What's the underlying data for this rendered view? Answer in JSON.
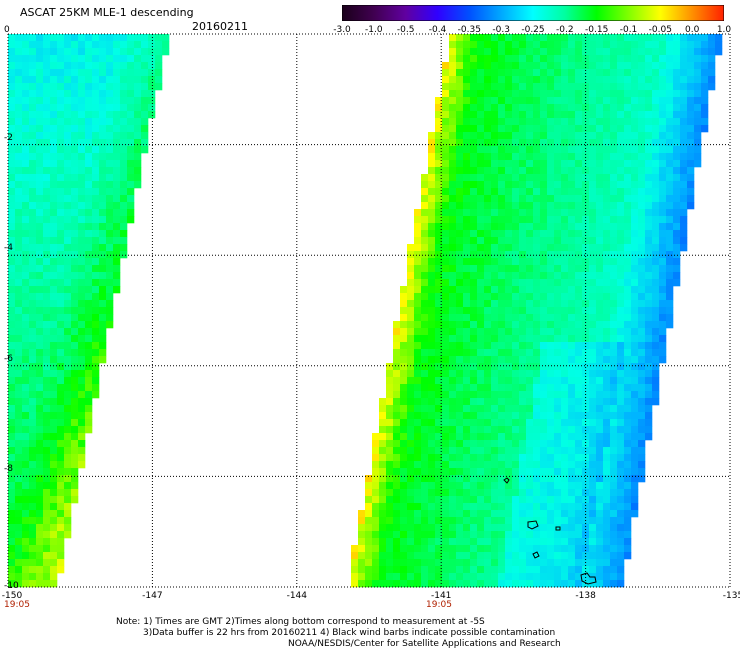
{
  "header": {
    "title": "ASCAT 25KM MLE-1 descending",
    "date": "20160211"
  },
  "colorbar": {
    "labels": [
      "-3.0",
      "-1.0",
      "-0.5",
      "-0.4",
      "-0.35",
      "-0.3",
      "-0.25",
      "-0.2",
      "-0.15",
      "-0.1",
      "-0.05",
      "0.0",
      "1.0"
    ],
    "colors": [
      "#1a001a",
      "#400050",
      "#6000a0",
      "#3000ff",
      "#0050ff",
      "#00a8ff",
      "#00ffff",
      "#00ffa0",
      "#00ff00",
      "#80ff00",
      "#ffff00",
      "#ff9000",
      "#ff2000"
    ]
  },
  "map": {
    "y_labels": [
      "0",
      "-2",
      "-4",
      "-6",
      "-8",
      "-10"
    ],
    "x_labels": [
      "-150",
      "-147",
      "-144",
      "-141",
      "-138",
      "-135"
    ],
    "time_labels": [
      "19:05",
      "19:05"
    ],
    "lat_range": [
      -10,
      0
    ],
    "lon_range": [
      -150,
      -135
    ]
  },
  "footer": {
    "line1": "Note: 1) Times are GMT 2)Times along bottom correspond to measurement at -5S",
    "line2": "3)Data buffer is 22 hrs from 20160211 4) Black wind barbs indicate possible contamination",
    "line3": "NOAA/NESDIS/Center for Satellite Applications and Research"
  }
}
